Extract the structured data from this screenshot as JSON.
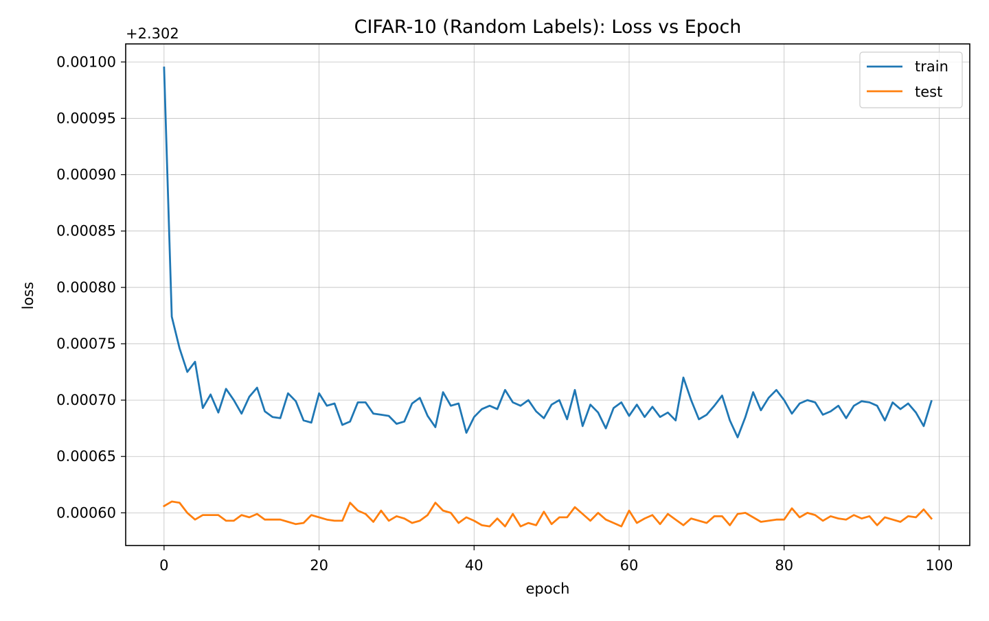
{
  "chart_data": {
    "type": "line",
    "title": "CIFAR-10 (Random Labels): Loss vs Epoch",
    "xlabel": "epoch",
    "ylabel": "loss",
    "y_offset_label": "+2.302",
    "xlim": [
      -4.95,
      103.95
    ],
    "ylim": [
      0.000571,
      0.001016
    ],
    "x_ticks": [
      0,
      20,
      40,
      60,
      80,
      100
    ],
    "y_ticks": [
      0.0006,
      0.00065,
      0.0007,
      0.00075,
      0.0008,
      0.00085,
      0.0009,
      0.00095,
      0.001
    ],
    "x_tick_labels": [
      "0",
      "20",
      "40",
      "60",
      "80",
      "100"
    ],
    "y_tick_labels": [
      "0.00060",
      "0.00065",
      "0.00070",
      "0.00075",
      "0.00080",
      "0.00085",
      "0.00090",
      "0.00095",
      "0.00100"
    ],
    "grid": true,
    "legend_position": "top-right",
    "series": [
      {
        "name": "train",
        "color": "#1f77b4",
        "x": [
          0,
          1,
          2,
          3,
          4,
          5,
          6,
          7,
          8,
          9,
          10,
          11,
          12,
          13,
          14,
          15,
          16,
          17,
          18,
          19,
          20,
          21,
          22,
          23,
          24,
          25,
          26,
          27,
          28,
          29,
          30,
          31,
          32,
          33,
          34,
          35,
          36,
          37,
          38,
          39,
          40,
          41,
          42,
          43,
          44,
          45,
          46,
          47,
          48,
          49,
          50,
          51,
          52,
          53,
          54,
          55,
          56,
          57,
          58,
          59,
          60,
          61,
          62,
          63,
          64,
          65,
          66,
          67,
          68,
          69,
          70,
          71,
          72,
          73,
          74,
          75,
          76,
          77,
          78,
          79,
          80,
          81,
          82,
          83,
          84,
          85,
          86,
          87,
          88,
          89,
          90,
          91,
          92,
          93,
          94,
          95,
          96,
          97,
          98,
          99
        ],
        "values": [
          0.000995,
          0.000774,
          0.000746,
          0.000725,
          0.000734,
          0.000693,
          0.000705,
          0.000689,
          0.00071,
          0.0007,
          0.000688,
          0.000703,
          0.000711,
          0.00069,
          0.000685,
          0.000684,
          0.000706,
          0.000699,
          0.000682,
          0.00068,
          0.000706,
          0.000695,
          0.000697,
          0.000678,
          0.000681,
          0.000698,
          0.000698,
          0.000688,
          0.000687,
          0.000686,
          0.000679,
          0.000681,
          0.000697,
          0.000702,
          0.000686,
          0.000676,
          0.000707,
          0.000695,
          0.000697,
          0.000671,
          0.000685,
          0.000692,
          0.000695,
          0.000692,
          0.000709,
          0.000698,
          0.000695,
          0.0007,
          0.00069,
          0.000684,
          0.000696,
          0.0007,
          0.000683,
          0.000709,
          0.000677,
          0.000696,
          0.000689,
          0.000675,
          0.000693,
          0.000698,
          0.000686,
          0.000696,
          0.000685,
          0.000694,
          0.000685,
          0.000689,
          0.000682,
          0.00072,
          0.0007,
          0.000683,
          0.000687,
          0.000695,
          0.000704,
          0.000682,
          0.000667,
          0.000685,
          0.000707,
          0.000691,
          0.000702,
          0.000709,
          0.0007,
          0.000688,
          0.000697,
          0.0007,
          0.000698,
          0.000687,
          0.00069,
          0.000695,
          0.000684,
          0.000695,
          0.000699,
          0.000698,
          0.000695,
          0.000682,
          0.000698,
          0.000692,
          0.000697,
          0.000689,
          0.000677,
          0.000699
        ]
      },
      {
        "name": "test",
        "color": "#ff7f0e",
        "x": [
          0,
          1,
          2,
          3,
          4,
          5,
          6,
          7,
          8,
          9,
          10,
          11,
          12,
          13,
          14,
          15,
          16,
          17,
          18,
          19,
          20,
          21,
          22,
          23,
          24,
          25,
          26,
          27,
          28,
          29,
          30,
          31,
          32,
          33,
          34,
          35,
          36,
          37,
          38,
          39,
          40,
          41,
          42,
          43,
          44,
          45,
          46,
          47,
          48,
          49,
          50,
          51,
          52,
          53,
          54,
          55,
          56,
          57,
          58,
          59,
          60,
          61,
          62,
          63,
          64,
          65,
          66,
          67,
          68,
          69,
          70,
          71,
          72,
          73,
          74,
          75,
          76,
          77,
          78,
          79,
          80,
          81,
          82,
          83,
          84,
          85,
          86,
          87,
          88,
          89,
          90,
          91,
          92,
          93,
          94,
          95,
          96,
          97,
          98,
          99
        ],
        "values": [
          0.000606,
          0.00061,
          0.000609,
          0.0006,
          0.000594,
          0.000598,
          0.000598,
          0.000598,
          0.000593,
          0.000593,
          0.000598,
          0.000596,
          0.000599,
          0.000594,
          0.000594,
          0.000594,
          0.000592,
          0.00059,
          0.000591,
          0.000598,
          0.000596,
          0.000594,
          0.000593,
          0.000593,
          0.000609,
          0.000602,
          0.000599,
          0.000592,
          0.000602,
          0.000593,
          0.000597,
          0.000595,
          0.000591,
          0.000593,
          0.000598,
          0.000609,
          0.000602,
          0.0006,
          0.000591,
          0.000596,
          0.000593,
          0.000589,
          0.000588,
          0.000595,
          0.000588,
          0.000599,
          0.000588,
          0.000591,
          0.000589,
          0.000601,
          0.00059,
          0.000596,
          0.000596,
          0.000605,
          0.000599,
          0.000593,
          0.0006,
          0.000594,
          0.000591,
          0.000588,
          0.000602,
          0.000591,
          0.000595,
          0.000598,
          0.00059,
          0.000599,
          0.000594,
          0.000589,
          0.000595,
          0.000593,
          0.000591,
          0.000597,
          0.000597,
          0.000589,
          0.000599,
          0.0006,
          0.000596,
          0.000592,
          0.000593,
          0.000594,
          0.000594,
          0.000604,
          0.000596,
          0.0006,
          0.000598,
          0.000593,
          0.000597,
          0.000595,
          0.000594,
          0.000598,
          0.000595,
          0.000597,
          0.000589,
          0.000596,
          0.000594,
          0.000592,
          0.000597,
          0.000596,
          0.000603,
          0.000595
        ]
      }
    ]
  }
}
